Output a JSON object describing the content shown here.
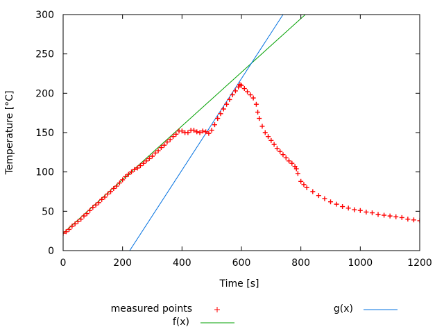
{
  "chart_data": {
    "type": "scatter",
    "title": "",
    "xlabel": "Time [s]",
    "ylabel": "Temperature [°C]",
    "xlim": [
      0,
      1200
    ],
    "ylim": [
      0,
      300
    ],
    "xticks": [
      0,
      200,
      400,
      600,
      800,
      1000,
      1200
    ],
    "yticks": [
      0,
      50,
      100,
      150,
      200,
      250,
      300
    ],
    "grid": false,
    "legend_position": "bottom",
    "series": [
      {
        "name": "measured points",
        "kind": "points",
        "marker": "+",
        "color": "#ff0000",
        "x": [
          0,
          10,
          20,
          30,
          40,
          50,
          60,
          70,
          80,
          90,
          100,
          110,
          120,
          130,
          140,
          150,
          160,
          170,
          180,
          190,
          200,
          210,
          220,
          230,
          240,
          250,
          260,
          270,
          280,
          290,
          300,
          310,
          320,
          330,
          340,
          350,
          360,
          370,
          380,
          390,
          400,
          410,
          420,
          430,
          440,
          450,
          460,
          470,
          480,
          490,
          500,
          510,
          520,
          530,
          540,
          550,
          560,
          570,
          580,
          590,
          595,
          600,
          610,
          620,
          630,
          640,
          650,
          655,
          660,
          670,
          680,
          690,
          700,
          710,
          720,
          730,
          740,
          750,
          760,
          770,
          780,
          785,
          790,
          800,
          810,
          820,
          840,
          860,
          880,
          900,
          920,
          940,
          960,
          980,
          1000,
          1020,
          1040,
          1060,
          1080,
          1100,
          1120,
          1140,
          1160,
          1180,
          1200
        ],
        "y": [
          22,
          24,
          27,
          31,
          34,
          37,
          40,
          44,
          47,
          51,
          55,
          58,
          61,
          65,
          68,
          72,
          75,
          79,
          82,
          86,
          90,
          94,
          97,
          100,
          103,
          105,
          108,
          111,
          114,
          117,
          120,
          124,
          127,
          131,
          134,
          138,
          141,
          145,
          148,
          152,
          152,
          150,
          150,
          153,
          153,
          151,
          150,
          152,
          151,
          149,
          153,
          160,
          168,
          174,
          180,
          186,
          192,
          198,
          203,
          208,
          211,
          210,
          206,
          202,
          198,
          194,
          186,
          176,
          168,
          158,
          150,
          145,
          140,
          135,
          130,
          126,
          122,
          118,
          114,
          111,
          107,
          104,
          98,
          88,
          84,
          80,
          75,
          70,
          66,
          62,
          59,
          56,
          54,
          52,
          51,
          49,
          48,
          46,
          45,
          44,
          43,
          42,
          40,
          39,
          38
        ]
      },
      {
        "name": "f(x)",
        "kind": "line",
        "color": "#00a000",
        "x": [
          0,
          815
        ],
        "y": [
          22,
          300
        ]
      },
      {
        "name": "g(x)",
        "kind": "line",
        "color": "#0070e0",
        "x": [
          224,
          740
        ],
        "y": [
          0,
          300
        ]
      }
    ]
  }
}
